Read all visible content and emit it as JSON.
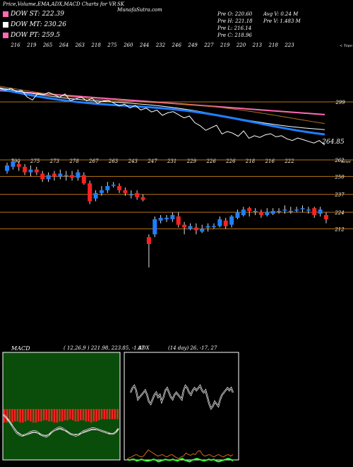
{
  "header": {
    "title": "Price,Volume,EMA,ADX,MACD Charts for VR",
    "source": "SK MunafaSutra.com"
  },
  "legend": [
    {
      "label": "DOW ST: 222.39",
      "color": "#ff69b4"
    },
    {
      "label": "DOW MT: 230.26",
      "color": "#ffffff"
    },
    {
      "label": "DOW PT: 259.5",
      "color": "#ff69b4"
    }
  ],
  "stats": {
    "open": "Pre   O: 220.60",
    "high": "Pre   H: 221.18",
    "low": "Pre   L: 216.14",
    "close": "Pre   C: 218.96",
    "avg_vol": "Avg V: 0.24   M",
    "pre_vol": "Pre   V: 1.483 M"
  },
  "top_panel": {
    "top_labels": [
      "216",
      "219",
      "265",
      "264",
      "263",
      "218",
      "275",
      "260",
      "244",
      "232",
      "246",
      "249",
      "227",
      "219",
      "220",
      "213",
      "218",
      "223"
    ],
    "corner_label": "< Topo",
    "bottom_labels": [
      "290",
      "275",
      "273",
      "278",
      "267",
      "263",
      "243",
      "247",
      "231",
      "229",
      "226",
      "226",
      "218",
      "216",
      "222"
    ],
    "level_label": "299",
    "last_label": "264.85",
    "colors": {
      "price": "#ffffff",
      "ema_short": "#1e7fff",
      "ema_mid": "#ffffff",
      "ema_long": "#ff69b4",
      "ema_slow": "#b8741a",
      "grid": "#b8741a"
    }
  },
  "candles": {
    "level_labels": [
      "262",
      "250",
      "237",
      "224",
      "212"
    ],
    "corner_label": "Lowe",
    "up_color": "#1e7fff",
    "down_color": "#ff2020",
    "data": [
      {
        "o": 254,
        "c": 258,
        "h": 260,
        "l": 252
      },
      {
        "o": 257,
        "c": 261,
        "h": 263,
        "l": 255
      },
      {
        "o": 259,
        "c": 257,
        "h": 261,
        "l": 254
      },
      {
        "o": 257,
        "c": 253,
        "h": 259,
        "l": 251
      },
      {
        "o": 253,
        "c": 255,
        "h": 258,
        "l": 250
      },
      {
        "o": 255,
        "c": 253,
        "h": 257,
        "l": 251
      },
      {
        "o": 252,
        "c": 248,
        "h": 254,
        "l": 246
      },
      {
        "o": 248,
        "c": 251,
        "h": 253,
        "l": 246
      },
      {
        "o": 252,
        "c": 250,
        "h": 254,
        "l": 247
      },
      {
        "o": 250,
        "c": 252,
        "h": 255,
        "l": 248
      },
      {
        "o": 251,
        "c": 251,
        "h": 254,
        "l": 247
      },
      {
        "o": 251,
        "c": 249,
        "h": 254,
        "l": 247
      },
      {
        "o": 249,
        "c": 253,
        "h": 255,
        "l": 247
      },
      {
        "o": 251,
        "c": 245,
        "h": 253,
        "l": 244
      },
      {
        "o": 245,
        "c": 232,
        "h": 247,
        "l": 230
      },
      {
        "o": 234,
        "c": 238,
        "h": 240,
        "l": 232
      },
      {
        "o": 238,
        "c": 240,
        "h": 243,
        "l": 236
      },
      {
        "o": 240,
        "c": 243,
        "h": 246,
        "l": 238
      },
      {
        "o": 244,
        "c": 244,
        "h": 246,
        "l": 242
      },
      {
        "o": 243,
        "c": 240,
        "h": 245,
        "l": 238
      },
      {
        "o": 240,
        "c": 238,
        "h": 242,
        "l": 236
      },
      {
        "o": 237,
        "c": 237,
        "h": 240,
        "l": 234
      },
      {
        "o": 238,
        "c": 235,
        "h": 240,
        "l": 233
      },
      {
        "o": 235,
        "c": 233,
        "h": 237,
        "l": 232
      },
      {
        "o": 206,
        "c": 201,
        "h": 208,
        "l": 184
      },
      {
        "o": 208,
        "c": 219,
        "h": 221,
        "l": 206
      },
      {
        "o": 218,
        "c": 220,
        "h": 222,
        "l": 216
      },
      {
        "o": 219,
        "c": 220,
        "h": 222,
        "l": 217
      },
      {
        "o": 219,
        "c": 222,
        "h": 224,
        "l": 217
      },
      {
        "o": 221,
        "c": 215,
        "h": 224,
        "l": 213
      },
      {
        "o": 215,
        "c": 213,
        "h": 217,
        "l": 208
      },
      {
        "o": 212,
        "c": 214,
        "h": 216,
        "l": 211
      },
      {
        "o": 213,
        "c": 211,
        "h": 216,
        "l": 208
      },
      {
        "o": 210,
        "c": 212,
        "h": 215,
        "l": 209
      },
      {
        "o": 213,
        "c": 214,
        "h": 216,
        "l": 210
      },
      {
        "o": 214,
        "c": 214,
        "h": 216,
        "l": 212
      },
      {
        "o": 214,
        "c": 219,
        "h": 221,
        "l": 213
      },
      {
        "o": 218,
        "c": 214,
        "h": 220,
        "l": 212
      },
      {
        "o": 215,
        "c": 221,
        "h": 222,
        "l": 213
      },
      {
        "o": 220,
        "c": 224,
        "h": 226,
        "l": 219
      },
      {
        "o": 222,
        "c": 226,
        "h": 228,
        "l": 221
      },
      {
        "o": 227,
        "c": 225,
        "h": 228,
        "l": 221
      },
      {
        "o": 225,
        "c": 225,
        "h": 227,
        "l": 222
      },
      {
        "o": 224,
        "c": 222,
        "h": 226,
        "l": 220
      },
      {
        "o": 222,
        "c": 224,
        "h": 227,
        "l": 221
      },
      {
        "o": 223,
        "c": 225,
        "h": 227,
        "l": 222
      },
      {
        "o": 225,
        "c": 225,
        "h": 227,
        "l": 223
      },
      {
        "o": 226,
        "c": 226,
        "h": 229,
        "l": 223
      },
      {
        "o": 225,
        "c": 225,
        "h": 228,
        "l": 223
      },
      {
        "o": 226,
        "c": 226,
        "h": 228,
        "l": 224
      },
      {
        "o": 227,
        "c": 227,
        "h": 229,
        "l": 224
      },
      {
        "o": 226,
        "c": 226,
        "h": 228,
        "l": 223
      },
      {
        "o": 227,
        "c": 222,
        "h": 228,
        "l": 220
      },
      {
        "o": 223,
        "c": 226,
        "h": 228,
        "l": 221
      },
      {
        "o": 222,
        "c": 219,
        "h": 224,
        "l": 216
      }
    ]
  },
  "macd": {
    "title": "MACD",
    "values": "( 12,26,9 ) 221.98,  223.85, -1.87",
    "bg_color": "#0a4d0a",
    "bar_color": "#ff2020",
    "bars": [
      12,
      12,
      12,
      12,
      11,
      11,
      12,
      12,
      11,
      10,
      11,
      12,
      12,
      11,
      11,
      10,
      10,
      11,
      11,
      12,
      12,
      11,
      11,
      10,
      10,
      9,
      10,
      11,
      11,
      10,
      10,
      11,
      11,
      12,
      11,
      11,
      10,
      9,
      9,
      9,
      9,
      9,
      9,
      9
    ],
    "macd_line": [
      3,
      6,
      10,
      14,
      19,
      23,
      25,
      26,
      25,
      24,
      22,
      21,
      21,
      23,
      25,
      26,
      27,
      25,
      22,
      20,
      18,
      17,
      18,
      20,
      22,
      24,
      25,
      26,
      25,
      23,
      21,
      20,
      19,
      18,
      18,
      19,
      20,
      21,
      22,
      23,
      24,
      24,
      22,
      18
    ],
    "signal_line": [
      2,
      5,
      8,
      12,
      16,
      20,
      22,
      24,
      24,
      23,
      22,
      21,
      21,
      22,
      23,
      24,
      24,
      23,
      21,
      19,
      18,
      17,
      18,
      19,
      20,
      22,
      23,
      23,
      23,
      22,
      21,
      20,
      19,
      18,
      18,
      18,
      19,
      20,
      21,
      22,
      22,
      22,
      20,
      17
    ]
  },
  "adx": {
    "title": "ADX",
    "values": "(14  day) 26,  -17,  27",
    "di_line": [
      28,
      24,
      22,
      26,
      34,
      32,
      30,
      28,
      26,
      30,
      36,
      38,
      34,
      30,
      28,
      32,
      30,
      36,
      32,
      26,
      24,
      28,
      32,
      34,
      30,
      28,
      30,
      32,
      34,
      26,
      22,
      24,
      28,
      30,
      26,
      24,
      26,
      24,
      22,
      26,
      28,
      26,
      32,
      38,
      42,
      40,
      36,
      38,
      40,
      34,
      30,
      28,
      26,
      24,
      26,
      24,
      28
    ],
    "orange_line": [
      90,
      88,
      87,
      85,
      84,
      86,
      87,
      86,
      82,
      78,
      80,
      82,
      84,
      86,
      85,
      84,
      86,
      87,
      85,
      84,
      86,
      88,
      89,
      87,
      86,
      82,
      84,
      85,
      83,
      84,
      80,
      79,
      84,
      86,
      85,
      84,
      86,
      87,
      85,
      84,
      86,
      87,
      85,
      84,
      86,
      84
    ],
    "green_line": [
      92,
      93,
      92,
      92,
      94,
      93,
      92,
      93,
      94,
      94,
      93,
      92,
      93,
      95,
      94,
      93,
      92,
      93,
      93,
      92,
      93,
      94,
      92,
      91,
      93,
      94,
      95,
      93,
      92,
      91,
      92,
      93,
      94,
      93,
      92,
      93,
      92,
      94,
      95,
      94,
      93,
      92,
      91,
      92,
      94
    ]
  }
}
